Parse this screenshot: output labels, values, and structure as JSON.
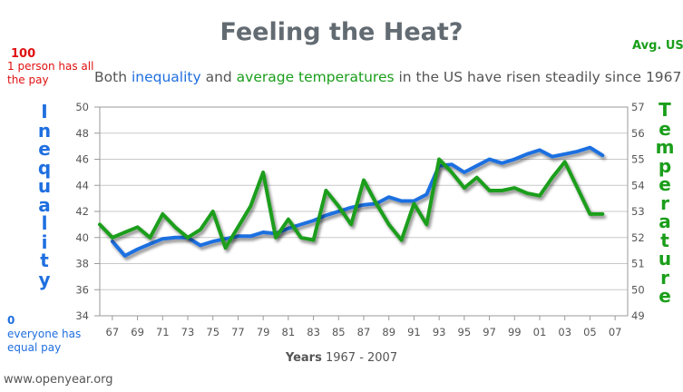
{
  "chart_data": {
    "type": "line",
    "title": "Feeling the Heat?",
    "subtitle_parts": [
      "Both ",
      "inequality",
      " and ",
      "average temperatures",
      " in the US have risen steadily since 1967."
    ],
    "x_axis": {
      "title_bold": "Years",
      "title_rest": " 1967 - 2007",
      "tick_labels": [
        "67",
        "69",
        "71",
        "73",
        "75",
        "77",
        "79",
        "81",
        "83",
        "85",
        "87",
        "89",
        "91",
        "93",
        "95",
        "97",
        "99",
        "01",
        "03",
        "05",
        "07"
      ],
      "tick_values": [
        1967,
        1969,
        1971,
        1973,
        1975,
        1977,
        1979,
        1981,
        1983,
        1985,
        1987,
        1989,
        1991,
        1993,
        1995,
        1997,
        1999,
        2001,
        2003,
        2005,
        2007
      ],
      "range": [
        1966,
        2008
      ]
    },
    "y_left": {
      "title": "Inequality",
      "range": [
        34,
        50
      ],
      "ticks": [
        34,
        36,
        38,
        40,
        42,
        44,
        46,
        48,
        50
      ],
      "top_note_value": "100",
      "top_note_text": "1 person has all the pay",
      "bottom_note_value": "0",
      "bottom_note_text": "everyone has equal pay"
    },
    "y_right": {
      "title": "Temperature",
      "header": "Avg. US",
      "range": [
        49,
        57
      ],
      "ticks": [
        49,
        50,
        51,
        52,
        53,
        54,
        55,
        56,
        57
      ]
    },
    "grid": "horizontal",
    "series": [
      {
        "name": "inequality",
        "axis": "left",
        "color": "#1f6fe0",
        "x": [
          1967,
          1968,
          1969,
          1970,
          1971,
          1972,
          1973,
          1974,
          1975,
          1976,
          1977,
          1978,
          1979,
          1980,
          1981,
          1982,
          1983,
          1984,
          1985,
          1986,
          1987,
          1988,
          1989,
          1990,
          1991,
          1992,
          1993,
          1994,
          1995,
          1996,
          1997,
          1998,
          1999,
          2000,
          2001,
          2002,
          2003,
          2004,
          2005,
          2006
        ],
        "values": [
          39.7,
          38.6,
          39.1,
          39.5,
          39.9,
          40.0,
          40.0,
          39.4,
          39.7,
          39.9,
          40.1,
          40.1,
          40.4,
          40.3,
          40.7,
          41.0,
          41.3,
          41.7,
          42.0,
          42.3,
          42.5,
          42.6,
          43.1,
          42.8,
          42.8,
          43.3,
          45.5,
          45.6,
          45.0,
          45.5,
          46.0,
          45.7,
          46.0,
          46.4,
          46.7,
          46.2,
          46.4,
          46.6,
          46.9,
          46.3
        ]
      },
      {
        "name": "average temperatures",
        "axis": "right",
        "color": "#1a9e1a",
        "x": [
          1966,
          1967,
          1968,
          1969,
          1970,
          1971,
          1972,
          1973,
          1974,
          1975,
          1976,
          1977,
          1978,
          1979,
          1980,
          1981,
          1982,
          1983,
          1984,
          1985,
          1986,
          1987,
          1988,
          1989,
          1990,
          1991,
          1992,
          1993,
          1994,
          1995,
          1996,
          1997,
          1998,
          1999,
          2000,
          2001,
          2002,
          2003,
          2004,
          2005,
          2006
        ],
        "values": [
          52.5,
          52.0,
          52.2,
          52.4,
          52.0,
          52.9,
          52.4,
          52.0,
          52.3,
          53.0,
          51.6,
          52.4,
          53.2,
          54.5,
          52.0,
          52.7,
          52.0,
          51.9,
          53.8,
          53.2,
          52.5,
          54.2,
          53.3,
          52.5,
          51.9,
          53.3,
          52.5,
          55.0,
          54.5,
          53.9,
          54.3,
          53.8,
          53.8,
          53.9,
          53.7,
          53.6,
          54.3,
          54.9,
          53.9,
          52.9,
          52.9
        ]
      }
    ]
  },
  "watermark": "www.openyear.org"
}
